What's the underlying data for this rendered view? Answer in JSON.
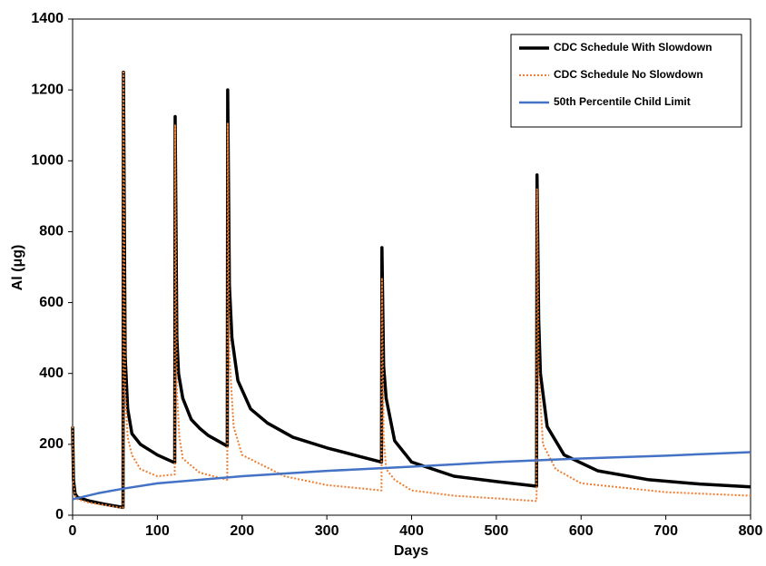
{
  "chart_data": {
    "type": "line",
    "xlabel": "Days",
    "ylabel": "Al (μg)",
    "xlim": [
      0,
      800
    ],
    "xticks": [
      0,
      100,
      200,
      300,
      400,
      500,
      600,
      700,
      800
    ],
    "ylim": [
      0,
      1400
    ],
    "yticks": [
      0,
      200,
      400,
      600,
      800,
      1000,
      1200,
      1400
    ],
    "legend": "upper right",
    "series": [
      {
        "name": "CDC Schedule With Slowdown",
        "color": "#000000",
        "style": "solid",
        "x": [
          0,
          1,
          3,
          6,
          20,
          40,
          59.5,
          60,
          62,
          65,
          70,
          80,
          100,
          120.5,
          121,
          123,
          125,
          130,
          140,
          150,
          160,
          182.5,
          183,
          185,
          188,
          195,
          210,
          230,
          260,
          300,
          340,
          364.5,
          365,
          367,
          370,
          380,
          400,
          450,
          500,
          547.5,
          548,
          550,
          552,
          560,
          580,
          620,
          680,
          740,
          800
        ],
        "values": [
          250,
          100,
          60,
          50,
          40,
          30,
          22,
          1250,
          450,
          300,
          230,
          200,
          170,
          148,
          1125,
          500,
          400,
          330,
          270,
          245,
          225,
          195,
          1200,
          650,
          500,
          380,
          300,
          260,
          220,
          190,
          165,
          150,
          755,
          420,
          330,
          210,
          150,
          110,
          95,
          82,
          960,
          550,
          400,
          250,
          170,
          125,
          100,
          88,
          80
        ]
      },
      {
        "name": "CDC Schedule No Slowdown",
        "color": "#ed7d31",
        "style": "dotted",
        "x": [
          0,
          1,
          3,
          6,
          20,
          40,
          59.5,
          60,
          62,
          65,
          70,
          80,
          100,
          120.5,
          121,
          123,
          126,
          130,
          150,
          182.5,
          183,
          185,
          190,
          200,
          250,
          300,
          364.5,
          365,
          367,
          370,
          380,
          400,
          450,
          547.5,
          548,
          550,
          555,
          570,
          600,
          700,
          800
        ],
        "values": [
          250,
          90,
          55,
          45,
          35,
          28,
          20,
          1250,
          350,
          220,
          170,
          130,
          110,
          115,
          1100,
          350,
          220,
          160,
          120,
          100,
          1105,
          450,
          250,
          170,
          110,
          85,
          70,
          670,
          220,
          130,
          100,
          70,
          55,
          40,
          920,
          400,
          200,
          130,
          90,
          65,
          55
        ]
      },
      {
        "name": "50th Percentile Child Limit",
        "color": "#4472c4",
        "style": "solid",
        "x": [
          0,
          30,
          60,
          100,
          200,
          300,
          400,
          500,
          600,
          700,
          800
        ],
        "values": [
          45,
          62,
          75,
          90,
          110,
          125,
          137,
          150,
          160,
          168,
          178
        ]
      }
    ]
  }
}
